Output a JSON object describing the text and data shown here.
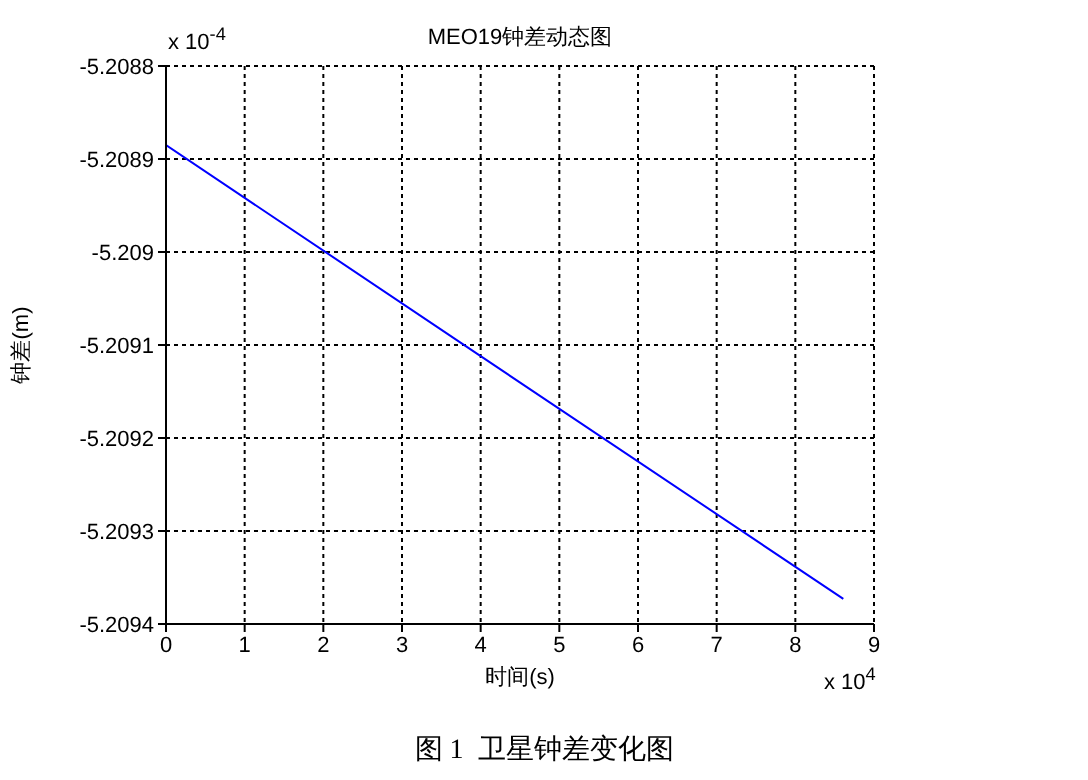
{
  "chart_data": {
    "type": "line",
    "title": "MEO19钟差动态图",
    "xlabel": "时间(s)",
    "ylabel": "钟差(m)",
    "x": [
      0,
      4,
      8.61
    ],
    "series": [
      {
        "color": "#0000ff",
        "values": [
          -5.208885,
          -5.209112,
          -5.209373
        ]
      }
    ],
    "xlim": [
      0,
      9
    ],
    "xticks": [
      0,
      1,
      2,
      3,
      4,
      5,
      6,
      7,
      8,
      9
    ],
    "ylim": [
      -5.2094,
      -5.2088
    ],
    "yticks": [
      -5.2094,
      -5.2093,
      -5.2092,
      -5.2091,
      -5.209,
      -5.2089,
      -5.2088
    ],
    "grid": true,
    "marker": "none",
    "line_style": "solid",
    "annotations": [
      "x 10$^{-4}$",
      "x 10$^{4}$",
      "图 1  卫星钟差变化图"
    ]
  }
}
